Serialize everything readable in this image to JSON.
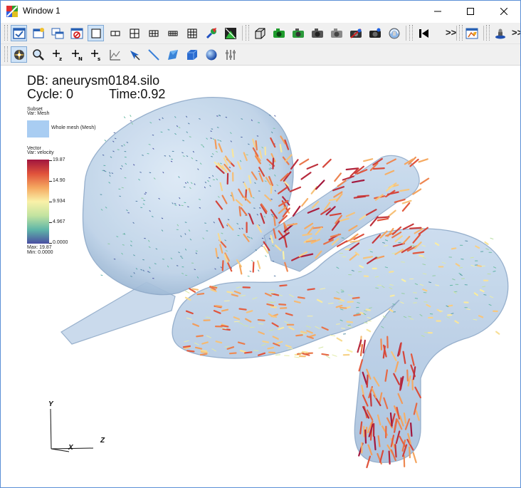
{
  "window": {
    "title": "Window 1"
  },
  "toolbar_more": ">>",
  "plot": {
    "db_label": "DB: aneurysm0184.silo",
    "cycle_label": "Cycle: 0",
    "time_label": "Time:0.92"
  },
  "subset_legend": {
    "title": "Subset",
    "var": "Var: Mesh",
    "swatch_color": "#a9cdf2",
    "entry": "Whole mesh (Mesh)"
  },
  "vector_legend": {
    "title": "Vector",
    "var": "Var: velocity",
    "ticks": [
      "19.87",
      "14.90",
      "9.934",
      "4.967",
      "0.0000"
    ],
    "max_label": "Max: 19.87",
    "min_label": "Min: 0.0000",
    "colormap": [
      "#a0153e",
      "#e0523b",
      "#f5a860",
      "#f9f1a8",
      "#c2e3a0",
      "#5fb6a8",
      "#4a4ea2"
    ]
  },
  "axes": {
    "y": "Y",
    "x": "X",
    "z": "Z"
  }
}
